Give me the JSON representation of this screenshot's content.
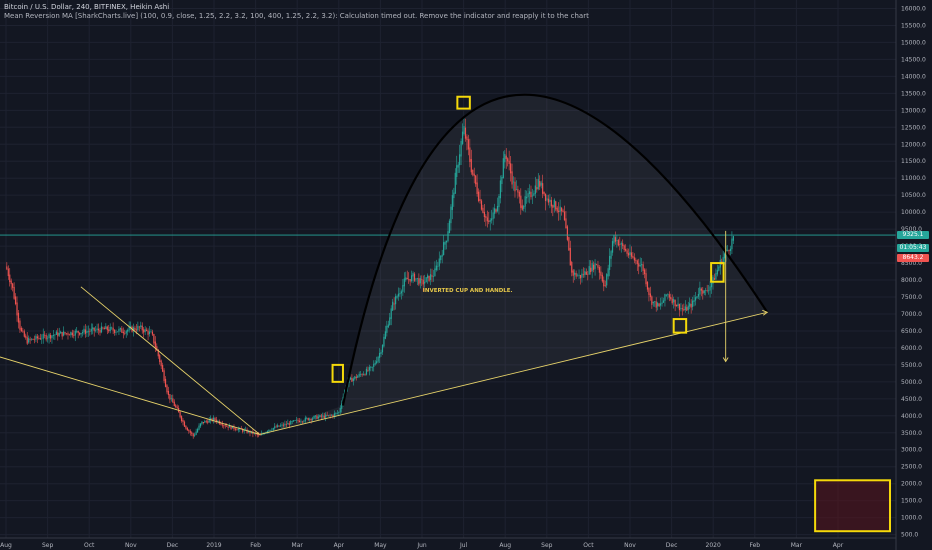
{
  "header": {
    "title": "Bitcoin / U.S. Dollar, 240, BITFINEX, Heikin Ashi",
    "indicator_note": "Mean Reversion MA [SharkCharts.live] (100, 0.9, close, 1.25, 2.2, 3.2, 100, 400, 1.25, 2.2, 3.2): Calculation timed out. Remove the indicator and reapply it to the chart"
  },
  "annotation": "INVERTED CUP AND HANDLE.",
  "price_tags": [
    {
      "label": "9325.1",
      "value": 9325,
      "color": "#26a69a"
    },
    {
      "label": "01:05:43",
      "value": 8950,
      "color": "#26a69a"
    },
    {
      "label": "8643.2",
      "value": 8650,
      "color": "#ef5350"
    }
  ],
  "colors": {
    "background": "#131722",
    "up": "#26a69a",
    "down": "#ef5350",
    "trendline": "#e6d26a",
    "highlight": "#f5d90a",
    "arc": "#000000",
    "hline": "#26a69a"
  },
  "chart_data": {
    "type": "candlestick",
    "title": "Bitcoin / U.S. Dollar, 240, BITFINEX, Heikin Ashi",
    "x_ticks": [
      "Aug",
      "Sep",
      "Oct",
      "Nov",
      "Dec",
      "2019",
      "Feb",
      "Mar",
      "Apr",
      "May",
      "Jun",
      "Jul",
      "Aug",
      "Sep",
      "Oct",
      "Nov",
      "Dec",
      "2020",
      "Feb",
      "Mar",
      "Apr"
    ],
    "y_ticks": [
      500,
      1000,
      1500,
      2000,
      2500,
      3000,
      3500,
      4000,
      4500,
      5000,
      5500,
      6000,
      6500,
      7000,
      7500,
      8000,
      8500,
      9000,
      9500,
      10000,
      10500,
      11000,
      11500,
      12000,
      12500,
      13000,
      13500,
      14000,
      14500,
      15000,
      15500,
      16000
    ],
    "y_tick_labels": [
      "500.0",
      "1000.0",
      "1500.0",
      "2000.0",
      "2500.0",
      "3000.0",
      "3500.0",
      "4000.0",
      "4500.0",
      "5000.0",
      "5500.0",
      "6000.0",
      "6500.0",
      "7000.0",
      "7500.0",
      "8000.0",
      "8500.0",
      "9000.0",
      "9500.0",
      "10000.0",
      "10500.0",
      "11000.0",
      "11500.0",
      "12000.0",
      "12500.0",
      "13000.0",
      "13500.0",
      "14000.0",
      "14500.0",
      "15000.0",
      "15500.0",
      "16000.0"
    ],
    "ylim": [
      400,
      16250
    ],
    "price_path": [
      [
        0,
        8400
      ],
      [
        0.15,
        7800
      ],
      [
        0.35,
        6500
      ],
      [
        0.5,
        6200
      ],
      [
        0.8,
        6300
      ],
      [
        1.2,
        6400
      ],
      [
        1.6,
        6450
      ],
      [
        2.0,
        6500
      ],
      [
        2.4,
        6550
      ],
      [
        2.8,
        6500
      ],
      [
        3.2,
        6600
      ],
      [
        3.5,
        6400
      ],
      [
        3.7,
        5600
      ],
      [
        3.9,
        4600
      ],
      [
        4.1,
        4200
      ],
      [
        4.3,
        3700
      ],
      [
        4.5,
        3400
      ],
      [
        4.7,
        3800
      ],
      [
        5.0,
        3900
      ],
      [
        5.3,
        3700
      ],
      [
        5.6,
        3600
      ],
      [
        5.9,
        3500
      ],
      [
        6.1,
        3400
      ],
      [
        6.3,
        3600
      ],
      [
        6.6,
        3700
      ],
      [
        7.0,
        3850
      ],
      [
        7.4,
        3950
      ],
      [
        7.8,
        4000
      ],
      [
        8.0,
        4100
      ],
      [
        8.2,
        5000
      ],
      [
        8.5,
        5200
      ],
      [
        8.8,
        5400
      ],
      [
        9.0,
        5900
      ],
      [
        9.3,
        7300
      ],
      [
        9.6,
        8000
      ],
      [
        9.8,
        8100
      ],
      [
        10.0,
        7900
      ],
      [
        10.3,
        8200
      ],
      [
        10.6,
        9300
      ],
      [
        10.8,
        11000
      ],
      [
        11.0,
        12500
      ],
      [
        11.2,
        11200
      ],
      [
        11.4,
        10300
      ],
      [
        11.6,
        9600
      ],
      [
        11.8,
        10200
      ],
      [
        12.0,
        11800
      ],
      [
        12.2,
        10800
      ],
      [
        12.4,
        10200
      ],
      [
        12.6,
        10500
      ],
      [
        12.8,
        10900
      ],
      [
        13.0,
        10400
      ],
      [
        13.2,
        10200
      ],
      [
        13.4,
        9900
      ],
      [
        13.6,
        8200
      ],
      [
        13.8,
        8100
      ],
      [
        14.0,
        8300
      ],
      [
        14.2,
        8500
      ],
      [
        14.4,
        7800
      ],
      [
        14.6,
        9300
      ],
      [
        14.8,
        9000
      ],
      [
        15.0,
        8700
      ],
      [
        15.3,
        8400
      ],
      [
        15.5,
        7400
      ],
      [
        15.7,
        7200
      ],
      [
        15.9,
        7600
      ],
      [
        16.1,
        7300
      ],
      [
        16.3,
        7100
      ],
      [
        16.5,
        7300
      ],
      [
        16.7,
        7800
      ],
      [
        16.8,
        7600
      ],
      [
        17.0,
        8000
      ],
      [
        17.2,
        8600
      ],
      [
        17.4,
        9000
      ],
      [
        17.5,
        9325
      ]
    ],
    "trendlines": [
      {
        "from": [
          -0.6,
          5900
        ],
        "to": [
          6.1,
          3450
        ]
      },
      {
        "from": [
          1.8,
          7800
        ],
        "to": [
          6.1,
          3450
        ]
      },
      {
        "from": [
          6.1,
          3450
        ],
        "to": [
          18.3,
          7050
        ]
      }
    ],
    "horizontal_line": 9325,
    "forecast_arrow": {
      "from": [
        17.3,
        9450
      ],
      "to": [
        17.3,
        5600
      ]
    },
    "cup_arc": {
      "start": [
        8.1,
        4300
      ],
      "peak": [
        12.0,
        13400
      ],
      "end": [
        18.3,
        7050
      ]
    },
    "highlight_boxes": [
      {
        "x": [
          7.85,
          8.1
        ],
        "y": [
          5000,
          5500
        ]
      },
      {
        "x": [
          10.85,
          11.15
        ],
        "y": [
          13050,
          13400
        ]
      },
      {
        "x": [
          16.05,
          16.35
        ],
        "y": [
          6450,
          6850
        ]
      },
      {
        "x": [
          16.95,
          17.25
        ],
        "y": [
          7950,
          8500
        ]
      },
      {
        "x": [
          19.45,
          21.25
        ],
        "y": [
          600,
          2100
        ]
      }
    ],
    "annotation_position": [
      11.1,
      7650
    ]
  }
}
